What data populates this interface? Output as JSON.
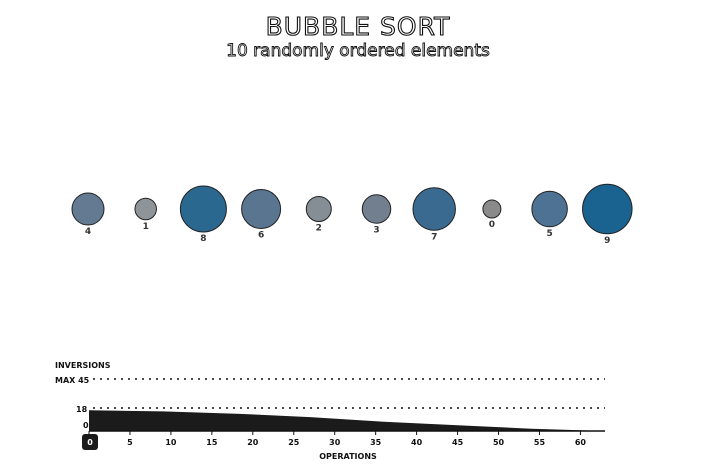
{
  "header": {
    "title": "BUBBLE SORT",
    "subtitle": "10 randomly ordered elements"
  },
  "bubbles": {
    "items": [
      {
        "label": "4",
        "value": 4,
        "color": "#647a92"
      },
      {
        "label": "1",
        "value": 1,
        "color": "#8f9499"
      },
      {
        "label": "8",
        "value": 8,
        "color": "#2b6890"
      },
      {
        "label": "6",
        "value": 6,
        "color": "#59758f"
      },
      {
        "label": "2",
        "value": 2,
        "color": "#858d95"
      },
      {
        "label": "3",
        "value": 3,
        "color": "#717f8f"
      },
      {
        "label": "7",
        "value": 7,
        "color": "#3b6a91"
      },
      {
        "label": "0",
        "value": 0,
        "color": "#8a8a8a"
      },
      {
        "label": "5",
        "value": 5,
        "color": "#4e7294"
      },
      {
        "label": "9",
        "value": 9,
        "color": "#1a6290"
      }
    ]
  },
  "chart": {
    "inversions_label": "INVERSIONS",
    "max_label": "MAX 45",
    "current_label": "18",
    "zero_label": "0",
    "x_axis_label": "OPERATIONS",
    "current_operation": "0",
    "accent_color": "#1a1a1a"
  },
  "chart_data": {
    "type": "area",
    "title": "",
    "xlabel": "OPERATIONS",
    "ylabel": "INVERSIONS",
    "xlim": [
      0,
      63
    ],
    "ylim": [
      0,
      45
    ],
    "x_ticks": [
      0,
      5,
      10,
      15,
      20,
      25,
      30,
      35,
      40,
      45,
      50,
      55,
      60
    ],
    "reference_lines": [
      {
        "label": "MAX 45",
        "value": 45
      },
      {
        "label": "18",
        "value": 18
      }
    ],
    "series": [
      {
        "values": [
          18,
          17,
          15,
          12,
          8,
          5,
          2,
          0
        ]
      }
    ],
    "x": [
      0,
      9,
      18,
      27,
      36,
      45,
      54,
      63
    ]
  }
}
